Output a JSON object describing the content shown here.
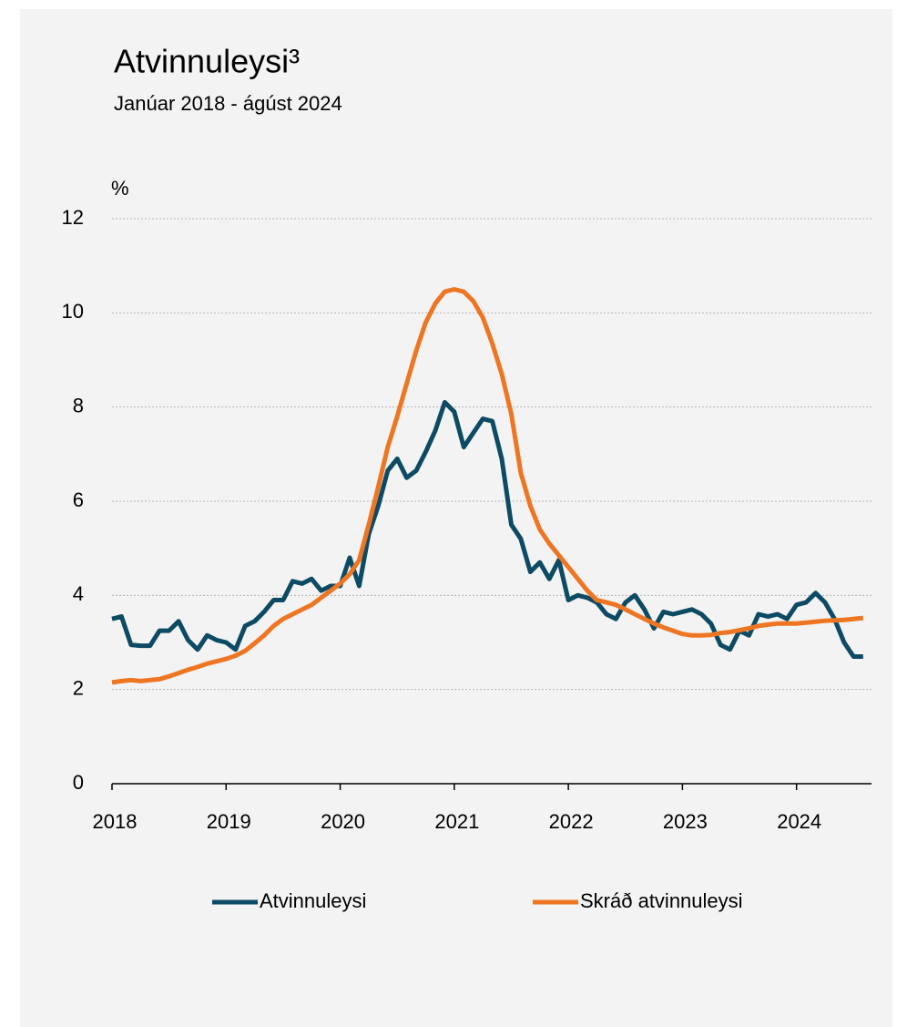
{
  "chart_data": {
    "type": "line",
    "title": "Atvinnuleysi³",
    "subtitle": "Janúar 2018 - ágúst 2024",
    "y_label": "%",
    "categories": [
      "2018",
      null,
      null,
      null,
      null,
      null,
      null,
      null,
      null,
      null,
      null,
      null,
      "2019",
      null,
      null,
      null,
      null,
      null,
      null,
      null,
      null,
      null,
      null,
      null,
      "2020",
      null,
      null,
      null,
      null,
      null,
      null,
      null,
      null,
      null,
      null,
      null,
      "2021",
      null,
      null,
      null,
      null,
      null,
      null,
      null,
      null,
      null,
      null,
      null,
      "2022",
      null,
      null,
      null,
      null,
      null,
      null,
      null,
      null,
      null,
      null,
      null,
      "2023",
      null,
      null,
      null,
      null,
      null,
      null,
      null,
      null,
      null,
      null,
      null,
      "2024",
      null,
      null,
      null,
      null,
      null,
      null,
      null
    ],
    "series": [
      {
        "name": "Atvinnuleysi",
        "color": "#0d4a63",
        "values": [
          3.5,
          3.55,
          2.95,
          2.93,
          2.93,
          3.25,
          3.25,
          3.45,
          3.05,
          2.85,
          3.15,
          3.05,
          3.0,
          2.85,
          3.35,
          3.45,
          3.65,
          3.9,
          3.9,
          4.3,
          4.25,
          4.35,
          4.1,
          4.2,
          4.2,
          4.8,
          4.2,
          5.3,
          5.9,
          6.65,
          6.9,
          6.5,
          6.65,
          7.05,
          7.5,
          8.1,
          7.9,
          7.15,
          7.45,
          7.75,
          7.7,
          6.9,
          5.5,
          5.2,
          4.5,
          4.7,
          4.35,
          4.75,
          3.9,
          4.0,
          3.95,
          3.85,
          3.6,
          3.5,
          3.85,
          4.0,
          3.7,
          3.3,
          3.65,
          3.6,
          3.65,
          3.7,
          3.6,
          3.4,
          2.95,
          2.85,
          3.25,
          3.15,
          3.6,
          3.55,
          3.6,
          3.5,
          3.8,
          3.85,
          4.05,
          3.85,
          3.5,
          3.0,
          2.7,
          2.7
        ]
      },
      {
        "name": "Skráð atvinnuleysi",
        "color": "#ee7623",
        "values": [
          2.15,
          2.18,
          2.2,
          2.18,
          2.2,
          2.22,
          2.28,
          2.35,
          2.42,
          2.48,
          2.55,
          2.6,
          2.65,
          2.72,
          2.82,
          2.98,
          3.15,
          3.35,
          3.5,
          3.6,
          3.7,
          3.8,
          3.95,
          4.1,
          4.25,
          4.45,
          4.75,
          5.5,
          6.3,
          7.15,
          7.8,
          8.5,
          9.2,
          9.8,
          10.2,
          10.45,
          10.5,
          10.45,
          10.25,
          9.9,
          9.35,
          8.7,
          7.85,
          6.6,
          5.9,
          5.4,
          5.1,
          4.85,
          4.6,
          4.35,
          4.1,
          3.9,
          3.85,
          3.8,
          3.7,
          3.6,
          3.5,
          3.4,
          3.32,
          3.25,
          3.18,
          3.15,
          3.15,
          3.16,
          3.2,
          3.22,
          3.26,
          3.3,
          3.35,
          3.38,
          3.4,
          3.4,
          3.4,
          3.42,
          3.44,
          3.46,
          3.47,
          3.48,
          3.5,
          3.52
        ]
      }
    ],
    "ylim": [
      0,
      12
    ],
    "yticks": [
      0,
      2,
      4,
      6,
      8,
      10,
      12
    ],
    "grid": true,
    "legend": "bottom"
  }
}
